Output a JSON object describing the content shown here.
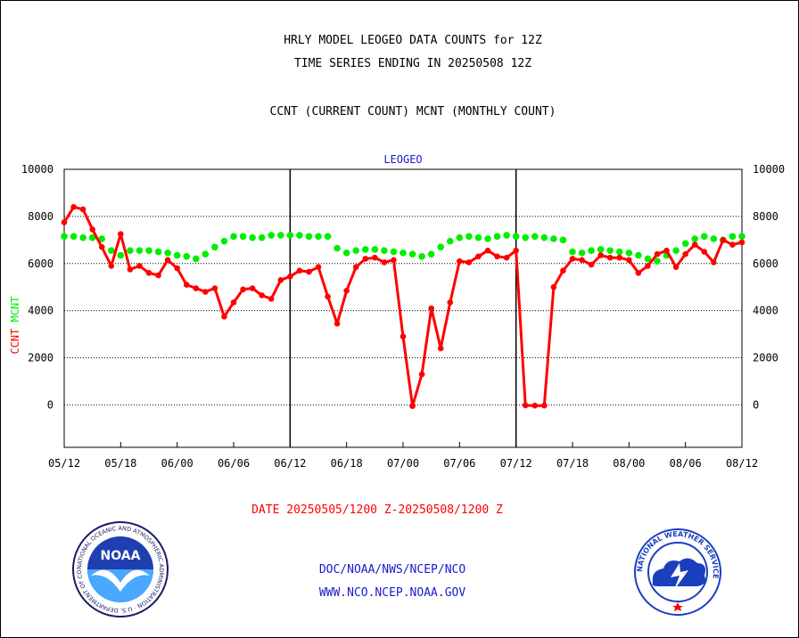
{
  "header": {
    "title": "HRLY MODEL LEOGEO DATA COUNTS for 12Z",
    "subtitle": "TIME SERIES ENDING IN 20250508 12Z",
    "description": "CCNT (CURRENT COUNT) MCNT (MONTHLY COUNT)"
  },
  "footer": {
    "date_range": "DATE 20250505/1200 Z-20250508/1200 Z",
    "org": "DOC/NOAA/NWS/NCEP/NCO",
    "url": "WWW.NCO.NCEP.NOAA.GOV"
  },
  "logos": {
    "noaa": {
      "center_text": "NOAA",
      "ring_text": "NATIONAL OCEANIC AND ATMOSPHERIC ADMINISTRATION · U.S. DEPARTMENT OF COMMERCE"
    },
    "nws": {
      "ring_text": "NATIONAL WEATHER SERVICE"
    }
  },
  "colors": {
    "ccnt": "#ff0000",
    "mcnt": "#00ee00",
    "legend_title": "#1a1acc",
    "frame": "#000000"
  },
  "chart_data": {
    "type": "line",
    "title": "LEOGEO",
    "ylabel_ccnt": "CCNT",
    "ylabel_mcnt": "MCNT",
    "ylim": [
      -1800,
      10000
    ],
    "yticks": [
      10000,
      8000,
      6000,
      4000,
      2000,
      0
    ],
    "ytick_labels": [
      "10000",
      "8000",
      "6000",
      "4000",
      "2000",
      "0"
    ],
    "xticks": [
      "05/12",
      "05/18",
      "06/00",
      "06/06",
      "06/12",
      "06/18",
      "07/00",
      "07/06",
      "07/12",
      "07/18",
      "08/00",
      "08/06",
      "08/12"
    ],
    "day_separators": [
      "06/12",
      "07/12"
    ],
    "grid": true,
    "series": [
      {
        "name": "CCNT",
        "color": "#ff0000",
        "x": [
          0,
          1,
          2,
          3,
          4,
          5,
          6,
          7,
          8,
          9,
          10,
          11,
          12,
          13,
          14,
          15,
          16,
          17,
          18,
          19,
          20,
          21,
          22,
          23,
          24,
          25,
          26,
          27,
          28,
          29,
          30,
          31,
          32,
          33,
          34,
          35,
          36,
          37,
          38,
          39,
          40,
          41,
          42,
          43,
          44,
          45,
          46,
          47,
          48,
          49,
          50,
          51,
          52,
          53,
          54,
          55,
          56,
          57,
          58,
          59,
          60,
          61,
          62,
          63,
          64,
          65,
          66,
          67,
          68,
          69,
          70,
          71,
          72
        ],
        "values": [
          7750,
          8400,
          8300,
          7450,
          6700,
          5900,
          7250,
          5750,
          5900,
          5600,
          5500,
          6150,
          5800,
          5100,
          4950,
          4800,
          4950,
          3750,
          4350,
          4900,
          4950,
          4650,
          4500,
          5300,
          5450,
          5700,
          5650,
          5850,
          4600,
          3450,
          4850,
          5850,
          6200,
          6250,
          6050,
          6150,
          2900,
          -50,
          1300,
          4100,
          2400,
          4350,
          6100,
          6050,
          6300,
          6550,
          6300,
          6250,
          6550,
          -20,
          -30,
          -30,
          5000,
          5700,
          6200,
          6150,
          5950,
          6350,
          6250,
          6250,
          6150,
          5600,
          5900,
          6400,
          6550,
          5850,
          6400,
          6800,
          6500,
          6050,
          7000,
          6800,
          6900
        ]
      },
      {
        "name": "MCNT",
        "color": "#00ee00",
        "x": [
          0,
          1,
          2,
          3,
          4,
          5,
          6,
          7,
          8,
          9,
          10,
          11,
          12,
          13,
          14,
          15,
          16,
          17,
          18,
          19,
          20,
          21,
          22,
          23,
          24,
          25,
          26,
          27,
          28,
          29,
          30,
          31,
          32,
          33,
          34,
          35,
          36,
          37,
          38,
          39,
          40,
          41,
          42,
          43,
          44,
          45,
          46,
          47,
          48,
          49,
          50,
          51,
          52,
          53,
          54,
          55,
          56,
          57,
          58,
          59,
          60,
          61,
          62,
          63,
          64,
          65,
          66,
          67,
          68,
          69,
          70,
          71,
          72
        ],
        "values": [
          7150,
          7150,
          7100,
          7100,
          7050,
          6550,
          6350,
          6550,
          6550,
          6550,
          6500,
          6450,
          6350,
          6300,
          6200,
          6400,
          6700,
          6950,
          7150,
          7150,
          7100,
          7100,
          7200,
          7200,
          7200,
          7200,
          7150,
          7150,
          7150,
          6650,
          6450,
          6550,
          6600,
          6600,
          6550,
          6500,
          6450,
          6400,
          6300,
          6400,
          6700,
          6950,
          7100,
          7150,
          7100,
          7050,
          7150,
          7200,
          7150,
          7100,
          7150,
          7100,
          7050,
          7000,
          6500,
          6450,
          6550,
          6600,
          6550,
          6500,
          6450,
          6350,
          6200,
          6100,
          6350,
          6550,
          6850,
          7050,
          7150,
          7050,
          7000,
          7150,
          7150
        ]
      }
    ]
  }
}
